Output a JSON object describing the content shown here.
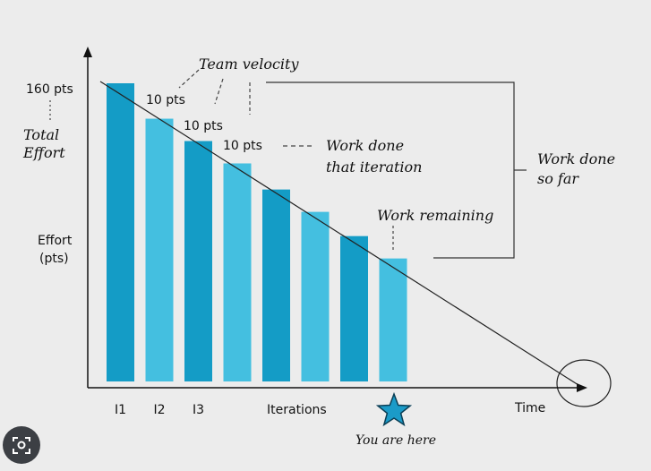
{
  "chart_data": {
    "type": "bar",
    "categories": [
      "I1",
      "I2",
      "I3",
      "",
      "",
      "",
      "",
      ""
    ],
    "values": [
      160,
      141,
      129,
      117,
      103,
      91,
      78,
      66
    ],
    "ylabel": "Effort\n(pts)",
    "xlabel": "Iterations",
    "ylim": [
      0,
      160
    ],
    "grid": false,
    "bar_colors": [
      "#149cc6",
      "#44bfe0",
      "#149cc6",
      "#44bfe0",
      "#149cc6",
      "#44bfe0",
      "#149cc6",
      "#44bfe0"
    ],
    "axis_end_label": "Time",
    "trend_line": "burndown from total effort to zero at Time",
    "annotations": {
      "total_value": "160 pts",
      "total_label": "Total\nEffort",
      "velocity_title": "Team velocity",
      "velocity_values": [
        "10 pts",
        "10 pts",
        "10 pts"
      ],
      "work_done_iteration": "Work done\nthat iteration",
      "work_remaining": "Work remaining",
      "work_done_so_far": "Work done\nso far",
      "you_are_here": "You are here"
    },
    "colors": {
      "bar_dark": "#149cc6",
      "bar_light": "#44bfe0",
      "star": "#1b9bc8"
    }
  },
  "overlay": {
    "lens_icon": "lens-icon"
  }
}
